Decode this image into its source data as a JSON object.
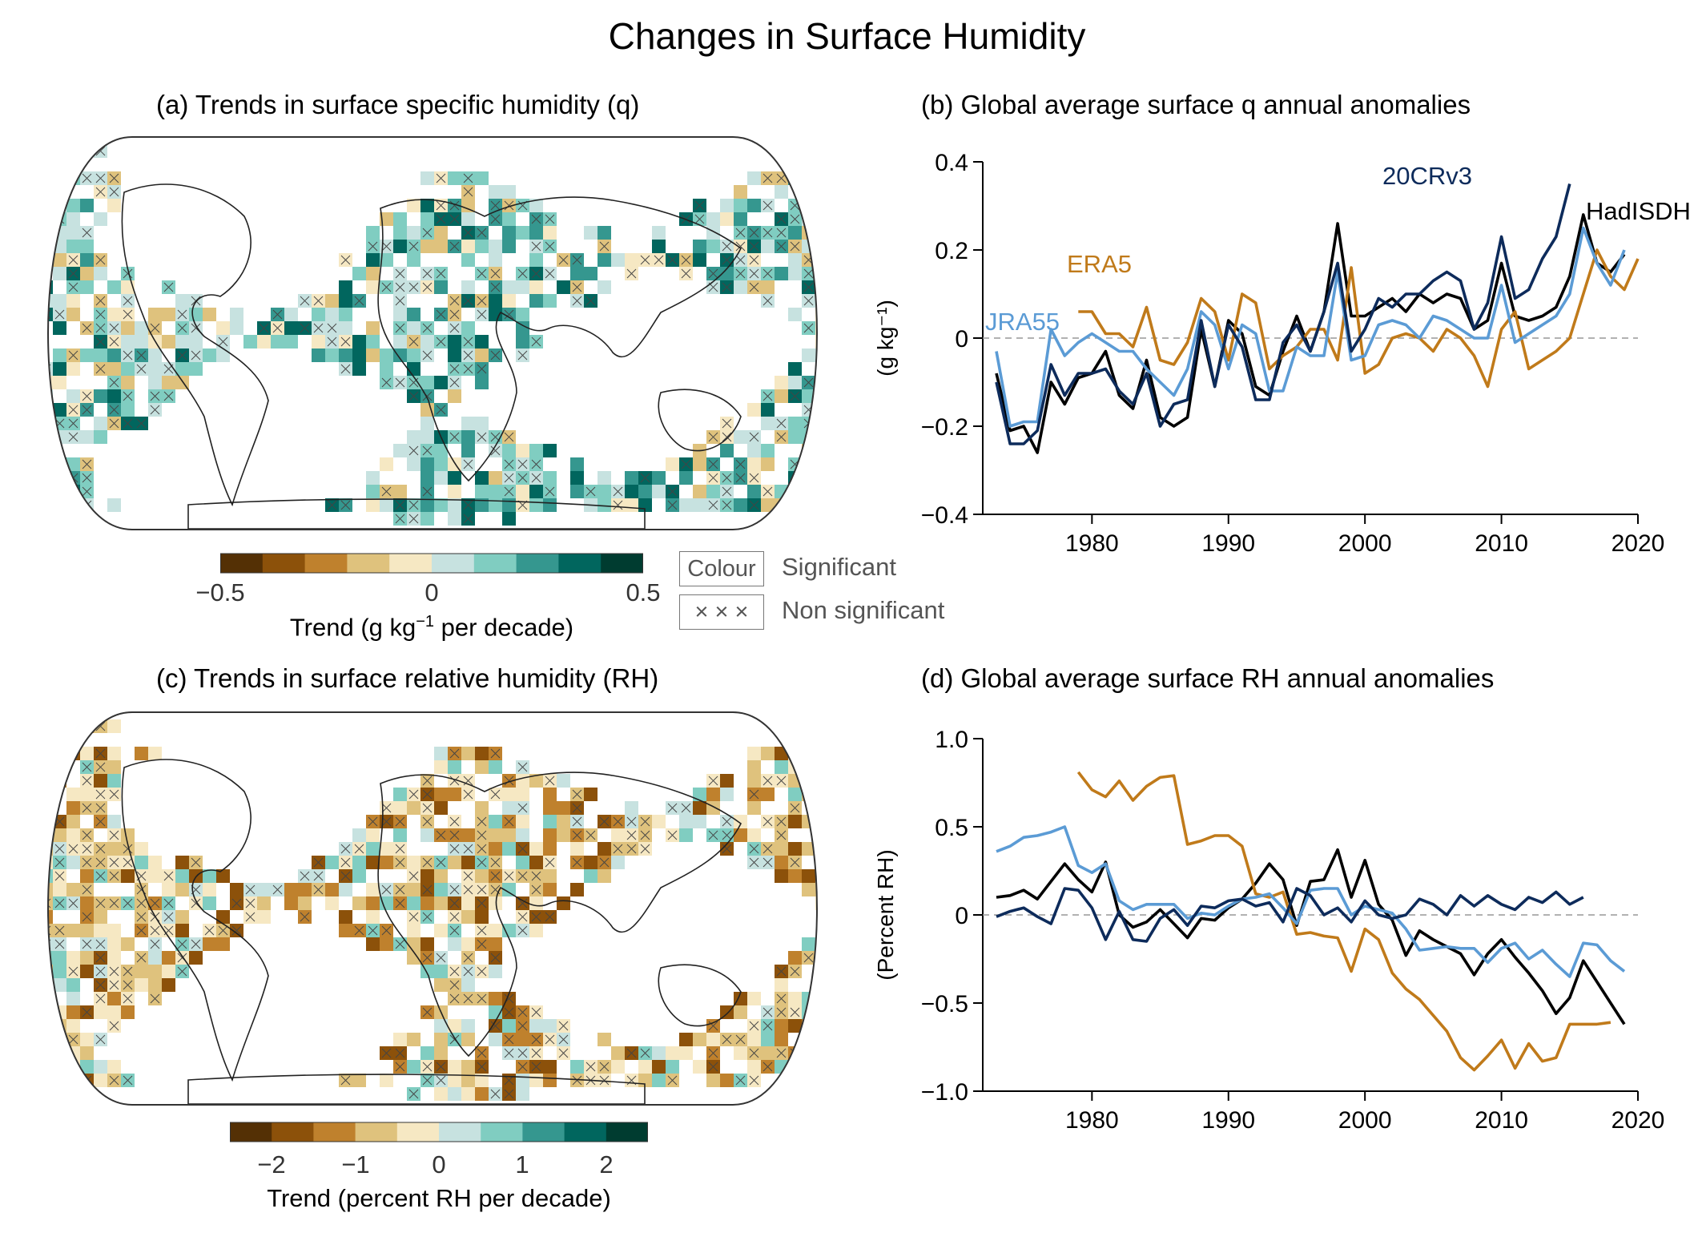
{
  "title": "Changes in Surface Humidity",
  "panels": {
    "a_title": "(a) Trends in surface specific humidity (q)",
    "b_title": "(b) Global average surface q annual anomalies",
    "c_title": "(c) Trends in surface relative humidity (RH)",
    "d_title": "(d) Global average surface RH annual anomalies"
  },
  "colorbar_a": {
    "ticks": [
      "−0.5",
      "0",
      "0.5"
    ],
    "label_main": "Trend (g kg",
    "label_sup": "−1",
    "label_tail": " per decade)"
  },
  "colorbar_c": {
    "ticks": [
      "−2",
      "−1",
      "0",
      "1",
      "2"
    ],
    "label": "Trend (percent RH per decade)"
  },
  "colorbar_colors": [
    "#543005",
    "#8c510a",
    "#bf812d",
    "#dfc27d",
    "#f6e8c3",
    "#c7e2e0",
    "#80cdc1",
    "#35978f",
    "#01665e",
    "#003c30"
  ],
  "significance_legend": {
    "colour_box": "Colour",
    "colour_label": "Significant",
    "cross_box": "× × ×",
    "cross_label": "Non significant"
  },
  "series_colors": {
    "HadISDH": "#000000",
    "ERA5": "#c07a1a",
    "JRA55": "#5b9bd5",
    "20CRv3": "#0d2b5b"
  },
  "chart_data": [
    {
      "type": "line",
      "title": "(b) Global average surface q annual anomalies",
      "xlabel": "",
      "ylabel": "(g kg⁻¹)",
      "xlim": [
        1972,
        2020
      ],
      "ylim": [
        -0.4,
        0.4
      ],
      "xticks": [
        "1980",
        "1990",
        "2000",
        "2010",
        "2020"
      ],
      "yticks": [
        "0.4",
        "0.2",
        "0",
        "−0.2",
        "−0.4"
      ],
      "grid": false,
      "series": [
        {
          "name": "HadISDH",
          "x0": 1973,
          "values": [
            -0.08,
            -0.21,
            -0.2,
            -0.26,
            -0.1,
            -0.15,
            -0.09,
            -0.08,
            -0.03,
            -0.13,
            -0.16,
            -0.05,
            -0.18,
            -0.2,
            -0.18,
            0.02,
            -0.11,
            0.04,
            0.01,
            -0.11,
            -0.13,
            -0.03,
            0.05,
            -0.03,
            0.06,
            0.26,
            0.05,
            0.05,
            0.07,
            0.09,
            0.06,
            0.1,
            0.08,
            0.1,
            0.09,
            0.02,
            0.04,
            0.17,
            0.05,
            0.04,
            0.05,
            0.07,
            0.14,
            0.28,
            0.17,
            0.15,
            0.19
          ]
        },
        {
          "name": "ERA5",
          "x0": 1979,
          "values": [
            0.06,
            0.06,
            0.01,
            0.01,
            -0.02,
            0.07,
            -0.05,
            -0.06,
            -0.01,
            0.09,
            0.06,
            -0.05,
            0.1,
            0.08,
            -0.07,
            -0.04,
            -0.02,
            0.02,
            0.02,
            -0.05,
            0.16,
            -0.08,
            -0.06,
            0.0,
            0.01,
            0.0,
            -0.03,
            0.02,
            0.0,
            -0.04,
            -0.11,
            0.02,
            0.06,
            -0.07,
            -0.05,
            -0.03,
            0.0,
            0.1,
            0.2,
            0.14,
            0.11,
            0.18
          ]
        },
        {
          "name": "JRA55",
          "x0": 1973,
          "values": [
            -0.03,
            -0.2,
            -0.19,
            -0.19,
            0.02,
            -0.04,
            -0.01,
            0.01,
            -0.01,
            -0.03,
            -0.03,
            -0.07,
            -0.1,
            -0.13,
            -0.07,
            0.06,
            0.03,
            -0.07,
            0.03,
            0.01,
            -0.12,
            -0.12,
            -0.02,
            -0.04,
            -0.04,
            0.15,
            -0.05,
            -0.04,
            0.03,
            0.04,
            0.03,
            0.0,
            0.05,
            0.04,
            0.02,
            0.0,
            0.0,
            0.12,
            -0.01,
            0.01,
            0.03,
            0.05,
            0.1,
            0.25,
            0.17,
            0.12,
            0.2
          ]
        },
        {
          "name": "20CRv3",
          "x0": 1973,
          "values": [
            -0.1,
            -0.24,
            -0.24,
            -0.21,
            -0.06,
            -0.13,
            -0.08,
            -0.08,
            -0.07,
            -0.12,
            -0.15,
            -0.08,
            -0.2,
            -0.15,
            -0.14,
            0.04,
            -0.11,
            0.03,
            -0.02,
            -0.14,
            -0.14,
            -0.01,
            0.03,
            -0.03,
            0.06,
            0.17,
            -0.03,
            0.02,
            0.09,
            0.07,
            0.1,
            0.1,
            0.13,
            0.15,
            0.13,
            0.02,
            0.08,
            0.23,
            0.09,
            0.11,
            0.18,
            0.23,
            0.35
          ]
        }
      ],
      "labels": {
        "HadISDH": "HadISDH",
        "ERA5": "ERA5",
        "JRA55": "JRA55",
        "20CRv3": "20CRv3"
      }
    },
    {
      "type": "line",
      "title": "(d) Global average surface RH annual anomalies",
      "xlabel": "",
      "ylabel": "(Percent RH)",
      "xlim": [
        1972,
        2020
      ],
      "ylim": [
        -1.0,
        1.0
      ],
      "xticks": [
        "1980",
        "1990",
        "2000",
        "2010",
        "2020"
      ],
      "yticks": [
        "1.0",
        "0.5",
        "0",
        "−0.5",
        "−1.0"
      ],
      "grid": false,
      "series": [
        {
          "name": "HadISDH",
          "x0": 1973,
          "values": [
            0.1,
            0.11,
            0.14,
            0.09,
            0.19,
            0.29,
            0.2,
            0.13,
            0.3,
            0.0,
            -0.07,
            -0.04,
            0.03,
            -0.05,
            -0.13,
            -0.02,
            -0.03,
            0.04,
            0.09,
            0.18,
            0.29,
            0.2,
            -0.06,
            0.19,
            0.2,
            0.37,
            0.1,
            0.31,
            0.06,
            -0.03,
            -0.23,
            -0.09,
            -0.14,
            -0.18,
            -0.22,
            -0.34,
            -0.22,
            -0.14,
            -0.24,
            -0.33,
            -0.43,
            -0.56,
            -0.47,
            -0.26,
            -0.38,
            -0.5,
            -0.62
          ]
        },
        {
          "name": "ERA5",
          "x0": 1979,
          "values": [
            0.81,
            0.71,
            0.67,
            0.76,
            0.65,
            0.73,
            0.78,
            0.79,
            0.4,
            0.42,
            0.45,
            0.45,
            0.39,
            0.12,
            0.1,
            0.13,
            -0.11,
            -0.1,
            -0.12,
            -0.13,
            -0.32,
            -0.08,
            -0.14,
            -0.33,
            -0.42,
            -0.48,
            -0.57,
            -0.66,
            -0.81,
            -0.88,
            -0.8,
            -0.71,
            -0.87,
            -0.73,
            -0.83,
            -0.81,
            -0.62,
            -0.62,
            -0.62,
            -0.61
          ]
        },
        {
          "name": "JRA55",
          "x0": 1973,
          "values": [
            0.36,
            0.39,
            0.44,
            0.45,
            0.47,
            0.5,
            0.28,
            0.24,
            0.29,
            0.08,
            0.03,
            0.06,
            0.06,
            0.06,
            -0.02,
            0.01,
            0.0,
            0.05,
            0.09,
            0.1,
            0.12,
            0.04,
            -0.05,
            0.14,
            0.15,
            0.15,
            0.0,
            0.05,
            0.03,
            0.01,
            -0.08,
            -0.2,
            -0.19,
            -0.18,
            -0.19,
            -0.19,
            -0.27,
            -0.19,
            -0.16,
            -0.25,
            -0.2,
            -0.28,
            -0.35,
            -0.16,
            -0.17,
            -0.26,
            -0.32
          ]
        },
        {
          "name": "20CRv3",
          "x0": 1973,
          "values": [
            -0.01,
            0.02,
            0.04,
            -0.01,
            -0.05,
            0.15,
            0.14,
            0.04,
            -0.14,
            0.02,
            -0.14,
            -0.15,
            -0.02,
            0.03,
            -0.06,
            0.05,
            0.04,
            0.08,
            0.09,
            0.05,
            0.07,
            -0.04,
            0.15,
            0.11,
            0.0,
            0.04,
            -0.04,
            0.08,
            0.0,
            -0.02,
            0.0,
            0.09,
            0.06,
            0.0,
            0.11,
            0.05,
            0.11,
            0.06,
            0.03,
            0.1,
            0.07,
            0.13,
            0.06,
            0.1
          ]
        }
      ]
    }
  ]
}
